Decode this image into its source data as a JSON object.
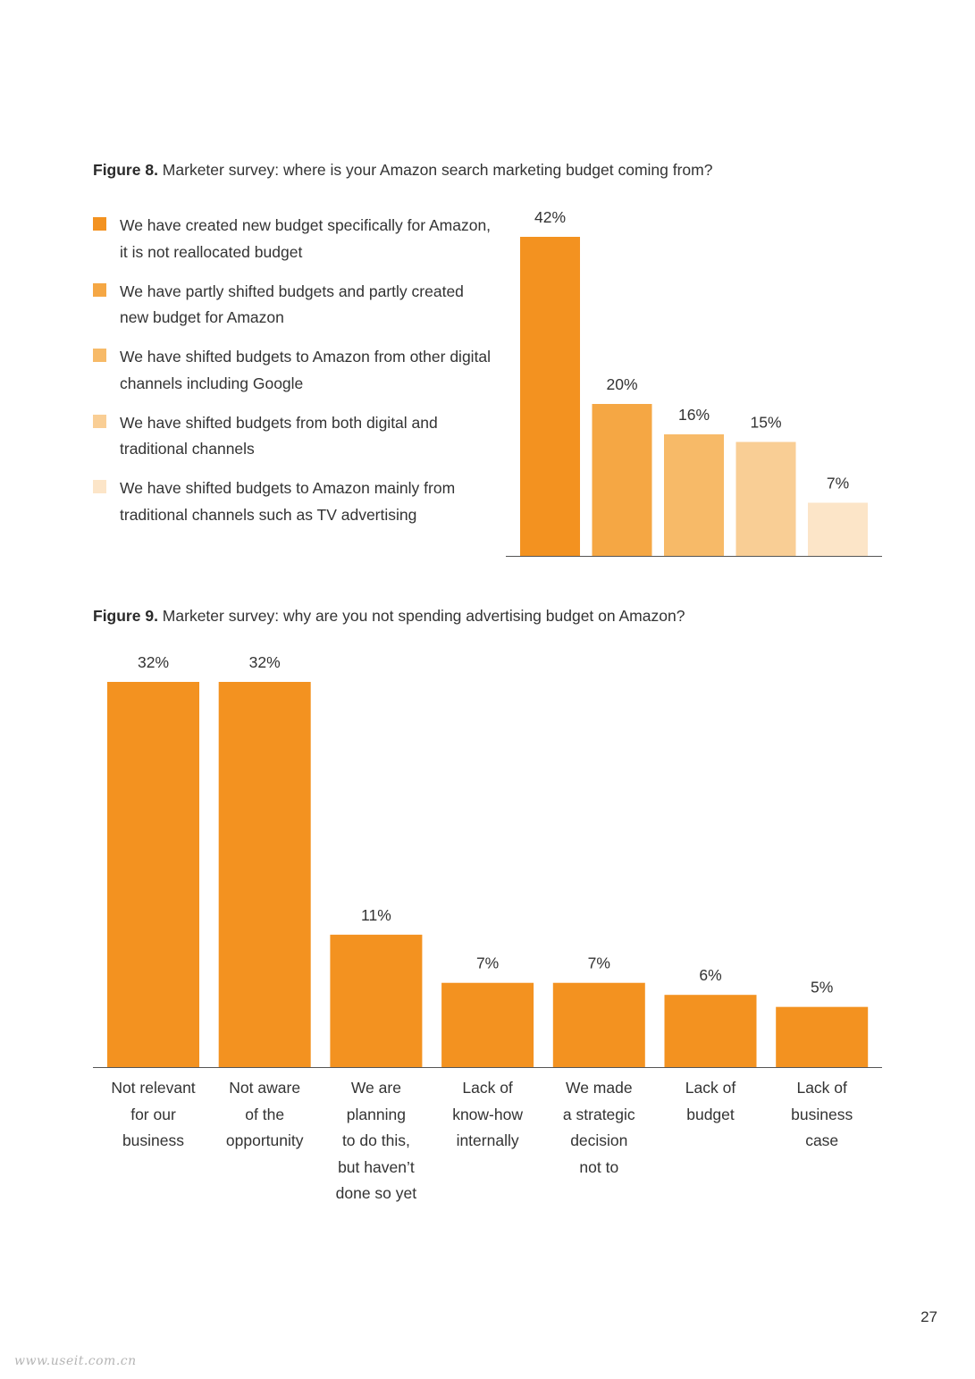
{
  "figure8": {
    "title_bold": "Figure 8.",
    "title_rest": " Marketer survey: where is your Amazon search marketing budget coming from?"
  },
  "figure9": {
    "title_bold": "Figure 9.",
    "title_rest": " Marketer survey: why are you not spending advertising budget on Amazon?"
  },
  "page_number": "27",
  "watermark": "www.useit.com.cn",
  "chart_data": [
    {
      "type": "bar",
      "title": "Marketer survey: where is your Amazon search marketing budget coming from?",
      "categories": [
        "We have created new budget specifically for Amazon, it is not reallocated budget",
        "We have partly shifted budgets and partly created new budget for Amazon",
        "We have shifted budgets to Amazon from other digital channels including Google",
        "We have shifted budgets from both digital and traditional channels",
        "We have shifted budgets to Amazon mainly from traditional channels such as TV advertising"
      ],
      "values": [
        42,
        20,
        16,
        15,
        7
      ],
      "value_labels": [
        "42%",
        "20%",
        "16%",
        "15%",
        "7%"
      ],
      "colors": [
        "#F39220",
        "#F5A744",
        "#F7BA68",
        "#F9CE95",
        "#FCE5C8"
      ],
      "legend": "left",
      "unit": "%"
    },
    {
      "type": "bar",
      "title": "Marketer survey: why are you not spending advertising budget on Amazon?",
      "categories": [
        [
          "Not relevant",
          "for our",
          "business"
        ],
        [
          "Not aware",
          "of the",
          "opportunity"
        ],
        [
          "We are",
          "planning",
          "to do this,",
          "but haven’t",
          "done so yet"
        ],
        [
          "Lack of",
          "know-how",
          "internally"
        ],
        [
          "We made",
          "a strategic",
          "decision",
          "not to"
        ],
        [
          "Lack of",
          "budget"
        ],
        [
          "Lack of",
          "business",
          "case"
        ]
      ],
      "values": [
        32,
        32,
        11,
        7,
        7,
        6,
        5
      ],
      "value_labels": [
        "32%",
        "32%",
        "11%",
        "7%",
        "7%",
        "6%",
        "5%"
      ],
      "color": "#F39220",
      "unit": "%"
    }
  ]
}
